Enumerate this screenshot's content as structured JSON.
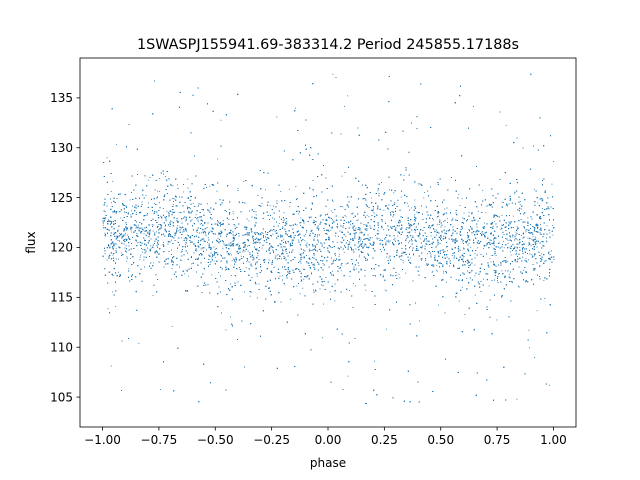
{
  "chart_data": {
    "type": "scatter",
    "title": "1SWASPJ155941.69-383314.2 Period 245855.17188s",
    "xlabel": "phase",
    "ylabel": "flux",
    "xlim": [
      -1.1,
      1.1
    ],
    "ylim": [
      102.0,
      139.0
    ],
    "xticks": [
      -1.0,
      -0.75,
      -0.5,
      -0.25,
      0.0,
      0.25,
      0.5,
      0.75,
      1.0
    ],
    "xtick_labels": [
      "−1.00",
      "−0.75",
      "−0.50",
      "−0.25",
      "0.00",
      "0.25",
      "0.50",
      "0.75",
      "1.00"
    ],
    "yticks": [
      105,
      110,
      115,
      120,
      125,
      130,
      135
    ],
    "ytick_labels": [
      "105",
      "110",
      "115",
      "120",
      "125",
      "130",
      "135"
    ],
    "grid": false,
    "legend": "none",
    "series": [
      {
        "color": "#1f77b4",
        "marker_size": "tiny",
        "x_range": [
          -1.0,
          1.0
        ],
        "mean_flux": 120.8,
        "typical_spread": 2.2,
        "envelope": {
          "x": [
            -1.0,
            -0.9,
            -0.8,
            -0.7,
            -0.6,
            -0.5,
            -0.4,
            -0.3,
            -0.2,
            -0.1,
            0.0,
            0.1,
            0.2,
            0.3,
            0.4,
            0.5,
            0.6,
            0.7,
            0.8,
            0.9,
            1.0
          ],
          "median": [
            121.0,
            121.5,
            122.0,
            122.0,
            121.5,
            120.5,
            120.0,
            120.5,
            120.5,
            120.5,
            120.5,
            121.0,
            121.5,
            122.0,
            121.5,
            120.5,
            120.0,
            120.5,
            120.5,
            120.5,
            121.0
          ]
        },
        "outlier_range": [
          104.0,
          137.5
        ],
        "approx_point_count": 14000
      }
    ]
  }
}
